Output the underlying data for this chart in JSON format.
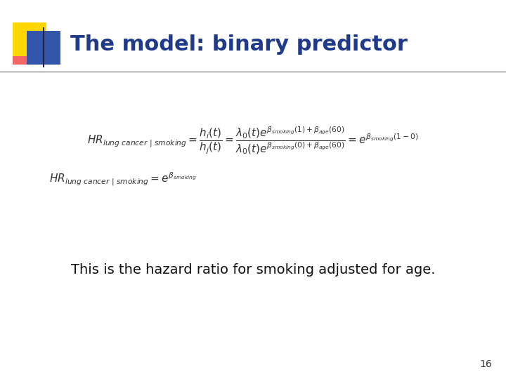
{
  "title": "The model: binary predictor",
  "title_color": "#1F3A8A",
  "title_fontsize": 22,
  "background_color": "#FFFFFF",
  "slide_number": "16",
  "subtitle_text": "This is the hazard ratio for smoking adjusted for age.",
  "subtitle_fontsize": 14,
  "formula1_fontsize": 11,
  "formula2_fontsize": 11,
  "logo_yellow": "#FFD700",
  "logo_blue": "#3355AA",
  "logo_red": "#EE3333",
  "line_color": "#888888"
}
